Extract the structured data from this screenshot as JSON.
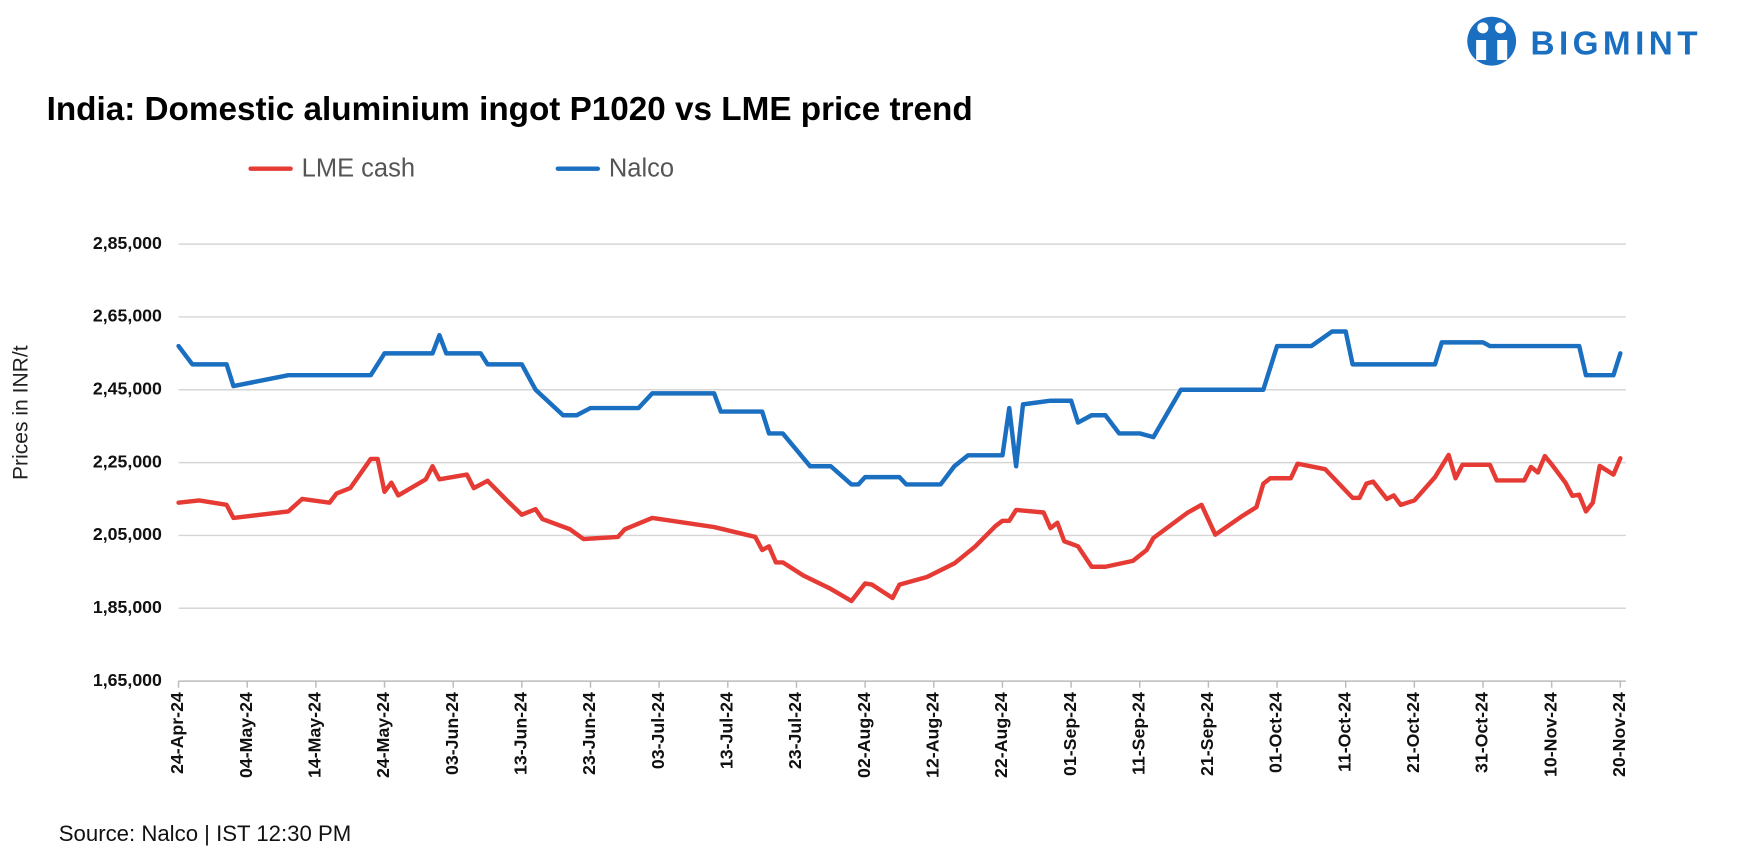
{
  "header": {
    "logo": "BIGMINT"
  },
  "chart_data": {
    "type": "line",
    "title": "India: Domestic aluminium ingot P1020 vs LME price trend",
    "ylabel": "Prices in INR/t",
    "source": "Source: Nalco | IST 12:30 PM",
    "grid": true,
    "legend": "top",
    "xlim": [
      "24-Apr-24",
      "20-Nov-24"
    ],
    "xticks": [
      "24-Apr-24",
      "04-May-24",
      "14-May-24",
      "24-May-24",
      "03-Jun-24",
      "13-Jun-24",
      "23-Jun-24",
      "03-Jul-24",
      "13-Jul-24",
      "23-Jul-24",
      "02-Aug-24",
      "12-Aug-24",
      "22-Aug-24",
      "01-Sep-24",
      "11-Sep-24",
      "21-Sep-24",
      "01-Oct-24",
      "11-Oct-24",
      "21-Oct-24",
      "31-Oct-24",
      "10-Nov-24",
      "20-Nov-24"
    ],
    "ylim": [
      165000,
      285000
    ],
    "yticks": [
      {
        "value": 165000,
        "label": "1,65,000"
      },
      {
        "value": 185000,
        "label": "1,85,000"
      },
      {
        "value": 205000,
        "label": "2,05,000"
      },
      {
        "value": 225000,
        "label": "2,25,000"
      },
      {
        "value": 245000,
        "label": "2,45,000"
      },
      {
        "value": 265000,
        "label": "2,65,000"
      },
      {
        "value": 285000,
        "label": "2,85,000"
      }
    ],
    "series": [
      {
        "name": "LME cash",
        "color": "#e63b35",
        "x": [
          "24-Apr-24",
          "27-Apr-24",
          "01-May-24",
          "02-May-24",
          "10-May-24",
          "12-May-24",
          "16-May-24",
          "17-May-24",
          "19-May-24",
          "22-May-24",
          "23-May-24",
          "24-May-24",
          "25-May-24",
          "26-May-24",
          "30-May-24",
          "31-May-24",
          "01-Jun-24",
          "05-Jun-24",
          "06-Jun-24",
          "08-Jun-24",
          "11-Jun-24",
          "13-Jun-24",
          "15-Jun-24",
          "16-Jun-24",
          "20-Jun-24",
          "22-Jun-24",
          "27-Jun-24",
          "28-Jun-24",
          "02-Jul-24",
          "11-Jul-24",
          "17-Jul-24",
          "18-Jul-24",
          "19-Jul-24",
          "20-Jul-24",
          "21-Jul-24",
          "24-Jul-24",
          "28-Jul-24",
          "31-Jul-24",
          "02-Aug-24",
          "03-Aug-24",
          "06-Aug-24",
          "07-Aug-24",
          "11-Aug-24",
          "15-Aug-24",
          "18-Aug-24",
          "21-Aug-24",
          "22-Aug-24",
          "23-Aug-24",
          "24-Aug-24",
          "28-Aug-24",
          "29-Aug-24",
          "30-Aug-24",
          "31-Aug-24",
          "02-Sep-24",
          "04-Sep-24",
          "06-Sep-24",
          "10-Sep-24",
          "12-Sep-24",
          "13-Sep-24",
          "18-Sep-24",
          "20-Sep-24",
          "22-Sep-24",
          "26-Sep-24",
          "28-Sep-24",
          "29-Sep-24",
          "30-Sep-24",
          "03-Oct-24",
          "04-Oct-24",
          "08-Oct-24",
          "12-Oct-24",
          "13-Oct-24",
          "14-Oct-24",
          "15-Oct-24",
          "17-Oct-24",
          "18-Oct-24",
          "19-Oct-24",
          "21-Oct-24",
          "24-Oct-24",
          "26-Oct-24",
          "27-Oct-24",
          "28-Oct-24",
          "01-Nov-24",
          "02-Nov-24",
          "06-Nov-24",
          "07-Nov-24",
          "08-Nov-24",
          "09-Nov-24",
          "10-Nov-24",
          "12-Nov-24",
          "13-Nov-24",
          "14-Nov-24",
          "15-Nov-24",
          "16-Nov-24",
          "17-Nov-24",
          "19-Nov-24",
          "20-Nov-24"
        ],
        "values": [
          214000,
          214600,
          213400,
          209800,
          211600,
          215000,
          214000,
          216500,
          218000,
          226000,
          226000,
          217000,
          219500,
          216000,
          220400,
          224000,
          220400,
          221700,
          218000,
          220000,
          214300,
          210700,
          212200,
          209500,
          206700,
          204000,
          204600,
          206700,
          209800,
          207300,
          204600,
          201000,
          202000,
          197600,
          197600,
          194000,
          190300,
          187000,
          191800,
          191500,
          187800,
          191500,
          193600,
          197300,
          201900,
          207600,
          209000,
          209000,
          212000,
          211300,
          207000,
          208500,
          203400,
          202000,
          196400,
          196400,
          198000,
          201000,
          204300,
          211300,
          213400,
          205200,
          210400,
          212800,
          219200,
          220700,
          220700,
          224700,
          223200,
          215300,
          215300,
          219200,
          219800,
          215000,
          216000,
          213400,
          214600,
          221000,
          227100,
          220700,
          224400,
          224400,
          220100,
          220100,
          223800,
          222300,
          226800,
          224500,
          219500,
          215900,
          216200,
          211600,
          214000,
          224100,
          221700,
          226200
        ]
      },
      {
        "name": "Nalco",
        "color": "#1a6fc0",
        "x": [
          "24-Apr-24",
          "26-Apr-24",
          "01-May-24",
          "02-May-24",
          "10-May-24",
          "22-May-24",
          "24-May-24",
          "31-May-24",
          "01-Jun-24",
          "02-Jun-24",
          "07-Jun-24",
          "08-Jun-24",
          "13-Jun-24",
          "15-Jun-24",
          "19-Jun-24",
          "21-Jun-24",
          "23-Jun-24",
          "30-Jun-24",
          "02-Jul-24",
          "11-Jul-24",
          "12-Jul-24",
          "18-Jul-24",
          "19-Jul-24",
          "21-Jul-24",
          "25-Jul-24",
          "28-Jul-24",
          "31-Jul-24",
          "01-Aug-24",
          "02-Aug-24",
          "07-Aug-24",
          "08-Aug-24",
          "13-Aug-24",
          "15-Aug-24",
          "17-Aug-24",
          "22-Aug-24",
          "23-Aug-24",
          "24-Aug-24",
          "25-Aug-24",
          "29-Aug-24",
          "01-Sep-24",
          "02-Sep-24",
          "04-Sep-24",
          "06-Sep-24",
          "08-Sep-24",
          "11-Sep-24",
          "13-Sep-24",
          "17-Sep-24",
          "29-Sep-24",
          "01-Oct-24",
          "06-Oct-24",
          "09-Oct-24",
          "11-Oct-24",
          "12-Oct-24",
          "24-Oct-24",
          "25-Oct-24",
          "31-Oct-24",
          "01-Nov-24",
          "14-Nov-24",
          "15-Nov-24",
          "19-Nov-24",
          "20-Nov-24"
        ],
        "values": [
          257000,
          252000,
          252000,
          246000,
          249000,
          249000,
          255000,
          255000,
          260000,
          255000,
          255000,
          252000,
          252000,
          245000,
          238000,
          238000,
          240000,
          240000,
          244000,
          244000,
          239000,
          239000,
          233000,
          233000,
          224000,
          224000,
          219000,
          219000,
          221000,
          221000,
          219000,
          219000,
          224000,
          227000,
          227000,
          240000,
          224000,
          241000,
          242000,
          242000,
          236000,
          238000,
          238000,
          233000,
          233000,
          232000,
          245000,
          245000,
          257000,
          257000,
          261000,
          261000,
          252000,
          252000,
          258000,
          258000,
          257000,
          257000,
          249000,
          249000,
          255000
        ]
      }
    ]
  }
}
